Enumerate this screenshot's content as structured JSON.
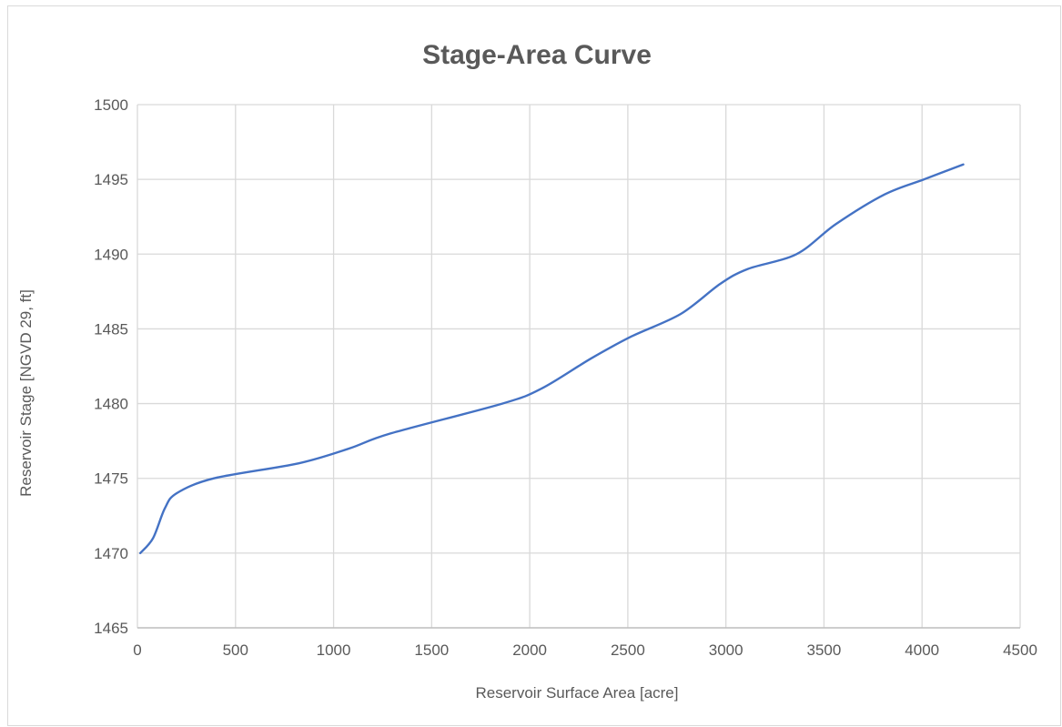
{
  "chart_data": {
    "type": "line",
    "title": "Stage-Area Curve",
    "xlabel": "Reservoir Surface Area [acre]",
    "ylabel": "Reservoir Stage [NGVD 29, ft]",
    "xlim": [
      0,
      4500
    ],
    "ylim": [
      1465,
      1500
    ],
    "xticks": [
      0,
      500,
      1000,
      1500,
      2000,
      2500,
      3000,
      3500,
      4000,
      4500
    ],
    "yticks": [
      1465,
      1470,
      1475,
      1480,
      1485,
      1490,
      1495,
      1500
    ],
    "grid": true,
    "line_color": "#4472c4",
    "series": [
      {
        "x": [
          15,
          80,
          140,
          200,
          390,
          820,
          1080,
          1290,
          1860,
          2060,
          2310,
          2520,
          2770,
          2970,
          3110,
          3360,
          3560,
          3810,
          4010,
          4210
        ],
        "y": [
          1470,
          1471,
          1473,
          1474,
          1475,
          1476,
          1477,
          1478,
          1480,
          1481,
          1483,
          1484.5,
          1486,
          1488,
          1489,
          1490,
          1492,
          1494,
          1495,
          1496
        ]
      }
    ]
  }
}
